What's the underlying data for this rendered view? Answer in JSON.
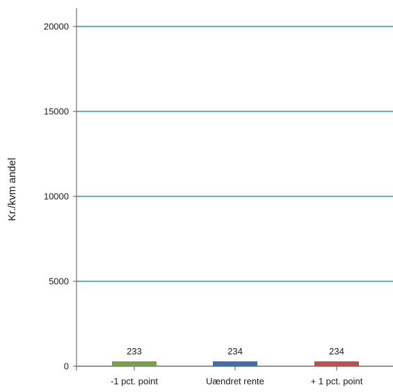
{
  "chart_data": {
    "type": "bar",
    "categories": [
      "-1 pct. point",
      "Uændret rente",
      "+ 1 pct. point"
    ],
    "values": [
      233,
      234,
      234
    ],
    "data_labels": [
      "233",
      "234",
      "234"
    ],
    "bar_colors": [
      "#77a04a",
      "#3f6fae",
      "#c0504d"
    ],
    "title": "",
    "xlabel": "",
    "ylabel": "Kr./kvm andel",
    "ylim": [
      0,
      20000
    ],
    "yticks": [
      0,
      5000,
      10000,
      15000,
      20000
    ],
    "ytick_labels": [
      "0",
      "5000",
      "10000",
      "15000",
      "20000"
    ],
    "grid": true,
    "grid_color": "#2e9aa6",
    "axis_color": "#555555",
    "legend": "none"
  }
}
